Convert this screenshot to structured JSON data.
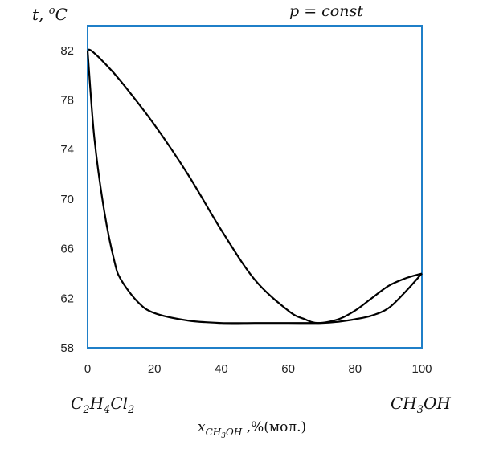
{
  "chart_data": {
    "type": "line",
    "title": "p = const",
    "ylabel": {
      "main": "t, ",
      "sup": "o",
      "unit": "C"
    },
    "xlabel": {
      "var": "x",
      "sub": "CH",
      "sub2": "3",
      "sub3": "OH",
      "rest": " ,%(мол.)"
    },
    "xlim": [
      0,
      100
    ],
    "ylim": [
      58,
      84
    ],
    "x_ticks": [
      0,
      20,
      40,
      60,
      80,
      100
    ],
    "y_ticks": [
      58,
      62,
      66,
      70,
      74,
      78,
      82
    ],
    "grid": false,
    "left_component": {
      "a": "C",
      "a_sub": "2",
      "b": "H",
      "b_sub": "4",
      "c": "Cl",
      "c_sub": "2"
    },
    "right_component": {
      "a": "CH",
      "a_sub": "3",
      "b": "OH"
    },
    "color": "#000000",
    "frame_color": "#1f7fc8",
    "series": [
      {
        "curve": "vapor",
        "x": [
          0,
          1,
          5,
          10,
          20,
          30,
          40,
          50,
          60,
          65,
          69,
          75,
          80,
          85,
          90,
          95,
          100
        ],
        "y": [
          82,
          82,
          81,
          79.5,
          76,
          72,
          67.5,
          63.5,
          61,
          60.3,
          60,
          60.3,
          61,
          62,
          63,
          63.6,
          64
        ]
      },
      {
        "curve": "liquid",
        "x": [
          0,
          2,
          5,
          8,
          10,
          15,
          20,
          30,
          40,
          50,
          60,
          70,
          75,
          80,
          85,
          90,
          95,
          100
        ],
        "y": [
          82,
          75,
          69,
          65,
          63.5,
          61.7,
          60.8,
          60.2,
          60,
          60,
          60,
          60,
          60.1,
          60.3,
          60.6,
          61.2,
          62.5,
          64
        ]
      }
    ]
  }
}
